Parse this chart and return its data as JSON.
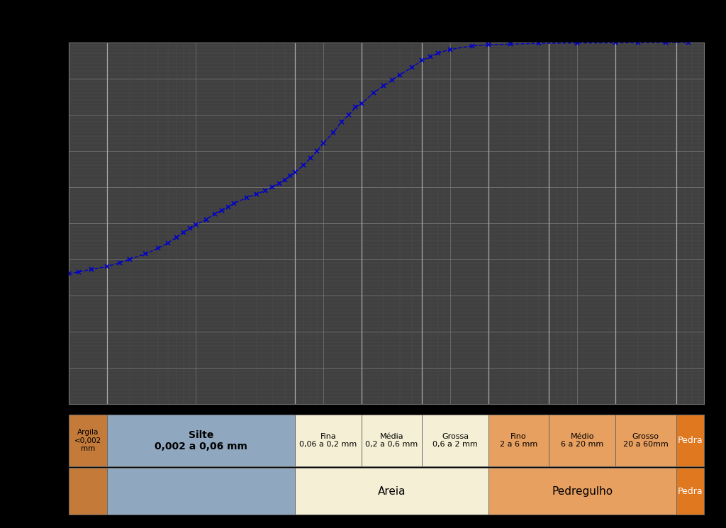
{
  "background_color": "#000000",
  "plot_bg_color": "#404040",
  "grid_color_major": "#777777",
  "grid_color_minor": "#555555",
  "curve_color": "#0000cc",
  "curve_data_x": [
    0.001,
    0.0012,
    0.0015,
    0.002,
    0.0025,
    0.003,
    0.004,
    0.005,
    0.006,
    0.007,
    0.008,
    0.009,
    0.01,
    0.012,
    0.014,
    0.016,
    0.018,
    0.02,
    0.025,
    0.03,
    0.035,
    0.04,
    0.045,
    0.05,
    0.055,
    0.06,
    0.07,
    0.08,
    0.09,
    0.1,
    0.12,
    0.14,
    0.16,
    0.18,
    0.2,
    0.25,
    0.3,
    0.35,
    0.4,
    0.5,
    0.6,
    0.7,
    0.8,
    1.0,
    1.5,
    2.0,
    3.0,
    5.0,
    10.0,
    20.0,
    30.0,
    50.0,
    75.0
  ],
  "curve_data_y": [
    36,
    36.5,
    37.2,
    38,
    39,
    40,
    41.5,
    43,
    44.5,
    46,
    47.5,
    48.5,
    49.5,
    51,
    52.5,
    53.5,
    54.5,
    55.5,
    57,
    58,
    59,
    60,
    61,
    62,
    63,
    64,
    66,
    68,
    70,
    72,
    75,
    78,
    80,
    82,
    83,
    86,
    88,
    89.5,
    91,
    93,
    95,
    96,
    97,
    98,
    99,
    99.3,
    99.5,
    99.7,
    99.8,
    99.85,
    99.88,
    99.9,
    99.9
  ],
  "xmin": 0.001,
  "xmax": 100.0,
  "ymin": 0,
  "ymax": 100,
  "boundaries": [
    0.001,
    0.002,
    0.06,
    0.2,
    0.6,
    2.0,
    6.0,
    20.0,
    60.0,
    100.0
  ],
  "color_argila": "#c47b3a",
  "color_silte": "#8fa8c0",
  "color_areia": "#f5f0d5",
  "color_pedregulho": "#e8a060",
  "color_pedra": "#e07820",
  "label_argila_top": "Argila\n<0,002\nmm",
  "label_silte_top": "Silte\n0,002 a 0,06 mm",
  "label_fina": "Fina\n0,06 a 0,2 mm",
  "label_media": "Média\n0,2 a 0,6 mm",
  "label_grossa": "Grossa\n0,6 a 2 mm",
  "label_fino": "Fino\n2 a 6 mm",
  "label_medio": "Médio\n6 a 20 mm",
  "label_grosso": "Grosso\n20 a 60mm",
  "label_pedra": "Pedra",
  "label_areia": "Areia",
  "label_pedregulho": "Pedregulho"
}
